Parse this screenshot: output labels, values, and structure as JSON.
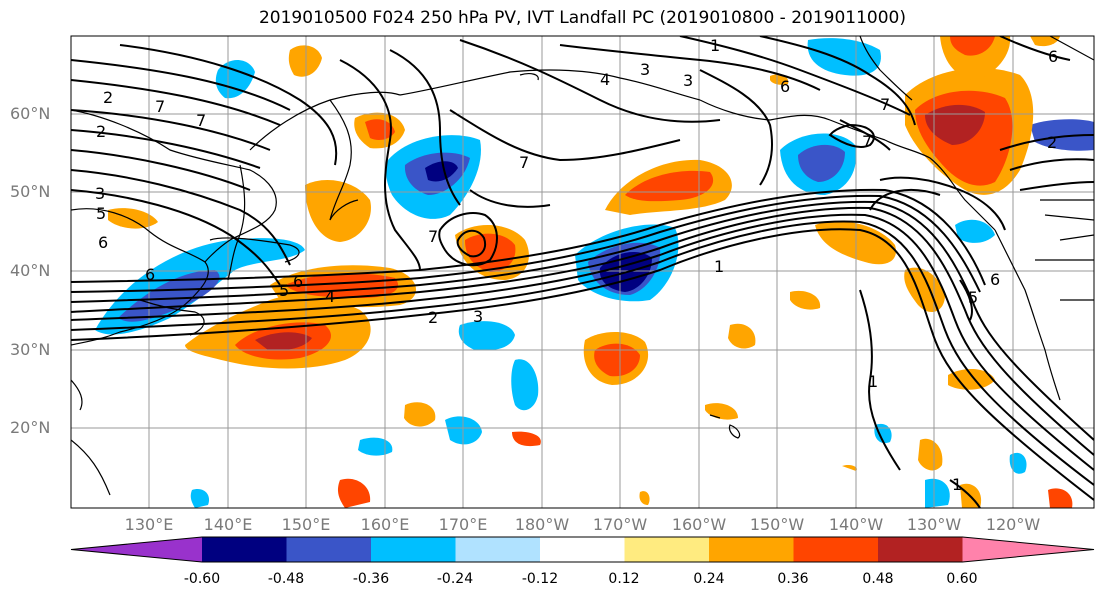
{
  "title": "2019010500 F024 250 hPa PV, IVT Landfall PC (2019010800 - 2019011000)",
  "lat_ticks": [
    "60°N",
    "50°N",
    "40°N",
    "30°N",
    "20°N"
  ],
  "lon_ticks": [
    "130°E",
    "140°E",
    "150°E",
    "160°E",
    "170°E",
    "180°W",
    "170°W",
    "160°W",
    "150°W",
    "140°W",
    "130°W",
    "120°W"
  ],
  "colorbar": {
    "labels": [
      "-0.60",
      "-0.48",
      "-0.36",
      "-0.24",
      "-0.12",
      "0.12",
      "0.24",
      "0.36",
      "0.48",
      "0.60"
    ],
    "colors": [
      "#9932cc",
      "#000080",
      "#3a55c8",
      "#00bfff",
      "#b0e2ff",
      "#ffffff",
      "#ffeb80",
      "#ffa500",
      "#ff4500",
      "#b22222",
      "#ff82ab"
    ]
  },
  "contour_labels": [
    "1",
    "2",
    "3",
    "4",
    "5",
    "6",
    "7"
  ]
}
